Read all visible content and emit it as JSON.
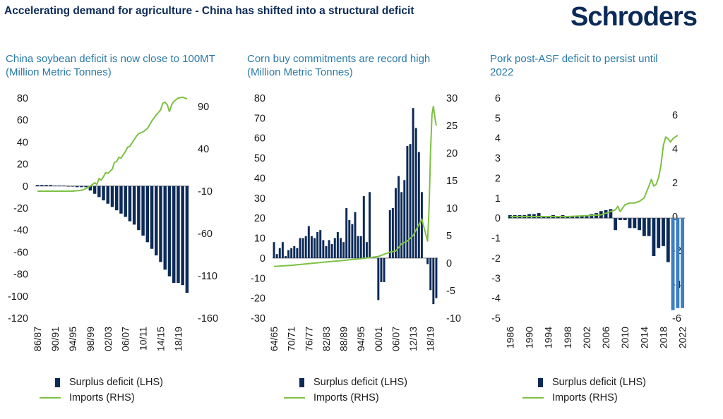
{
  "page": {
    "title": "Accelerating demand for agriculture - China has shifted into a structural deficit",
    "logo": "Schroders"
  },
  "colors": {
    "bar": "#0c2a58",
    "bar_highlight": "#3d7fc1",
    "line": "#7cc142",
    "axis": "#6f6f6f",
    "text": "#1a1a1a"
  },
  "chart_data": [
    {
      "type": "bar+line",
      "title": "China soybean deficit is now close to 100MT (Million Metric Tonnes)",
      "categories": [
        "86/87",
        "87/88",
        "88/89",
        "89/90",
        "90/91",
        "91/92",
        "92/93",
        "93/94",
        "94/95",
        "95/96",
        "96/97",
        "97/98",
        "98/99",
        "99/00",
        "00/01",
        "01/02",
        "02/03",
        "03/04",
        "04/05",
        "05/06",
        "06/07",
        "07/08",
        "08/09",
        "09/10",
        "10/11",
        "11/12",
        "12/13",
        "13/14",
        "14/15",
        "15/16",
        "16/17",
        "17/18",
        "18/19",
        "19/20",
        "20/21"
      ],
      "xticks": [
        "86/87",
        "90/91",
        "94/95",
        "98/99",
        "02/03",
        "06/07",
        "10/11",
        "14/15",
        "18/19"
      ],
      "series": [
        {
          "name": "Surplus deficit (LHS)",
          "type": "bar",
          "axis": "left",
          "values": [
            1,
            1,
            1,
            1,
            0.5,
            0.5,
            0.5,
            -0.5,
            -0.5,
            -1,
            -1,
            -1,
            -4,
            -7,
            -10,
            -13,
            -16,
            -19,
            -22,
            -25,
            -28,
            -32,
            -35,
            -40,
            -45,
            -51,
            -57,
            -63,
            -69,
            -76,
            -82,
            -88,
            -88,
            -90,
            -97
          ]
        },
        {
          "name": "Imports (RHS)",
          "type": "line",
          "axis": "right",
          "x": [
            0,
            4,
            8,
            10,
            11,
            12,
            13,
            13.5,
            14,
            14.5,
            15,
            15.5,
            16,
            17,
            17.5,
            18,
            18.5,
            19,
            20,
            20.5,
            21,
            22,
            22.5,
            23,
            24,
            24.5,
            25,
            26,
            27,
            28,
            28.5,
            29,
            29.5,
            30,
            30.5,
            31,
            32,
            33,
            34
          ],
          "values": [
            -10,
            -10,
            -10,
            -9,
            -7,
            -4,
            0,
            -2,
            5,
            3,
            7,
            12,
            11,
            16,
            24,
            25,
            30,
            29,
            37,
            42,
            43,
            51,
            55,
            58,
            60,
            62,
            64,
            73,
            80,
            86,
            94,
            95,
            92,
            84,
            92,
            96,
            100,
            101,
            99
          ]
        }
      ],
      "ylim_left": [
        -120,
        80
      ],
      "yticks_left": [
        80,
        60,
        40,
        20,
        0,
        -20,
        -40,
        -60,
        -80,
        -100,
        -120
      ],
      "ylim_right": [
        -160,
        100
      ],
      "yticks_right": [
        90,
        40,
        -10,
        -60,
        -110,
        -160
      ]
    },
    {
      "type": "bar+line",
      "title": "Corn buy commitments are record high (Million Metric Tonnes)",
      "categories": [
        "64/65",
        "65/66",
        "66/67",
        "67/68",
        "68/69",
        "69/70",
        "70/71",
        "71/72",
        "72/73",
        "73/74",
        "74/75",
        "75/76",
        "76/77",
        "77/78",
        "78/79",
        "79/80",
        "80/81",
        "81/82",
        "82/83",
        "83/84",
        "84/85",
        "85/86",
        "86/87",
        "87/88",
        "88/89",
        "89/90",
        "90/91",
        "91/92",
        "92/93",
        "93/94",
        "94/95",
        "95/96",
        "96/97",
        "97/98",
        "98/99",
        "99/00",
        "00/01",
        "01/02",
        "02/03",
        "03/04",
        "04/05",
        "05/06",
        "06/07",
        "07/08",
        "08/09",
        "09/10",
        "10/11",
        "11/12",
        "12/13",
        "13/14",
        "14/15",
        "15/16",
        "16/17",
        "17/18",
        "18/19",
        "19/20",
        "20/21"
      ],
      "xticks": [
        "64/65",
        "70/71",
        "76/77",
        "82/83",
        "88/89",
        "94/95",
        "00/01",
        "06/07",
        "12/13",
        "18/19"
      ],
      "series": [
        {
          "name": "Surplus deficit (LHS)",
          "type": "bar",
          "axis": "left",
          "values": [
            8,
            2,
            5,
            8,
            1,
            4,
            5,
            6,
            5,
            10,
            10,
            11,
            16,
            11,
            10,
            13,
            14,
            9,
            6,
            9,
            7,
            10,
            13,
            10,
            8,
            25,
            19,
            17,
            23,
            11,
            11,
            31,
            8,
            33,
            0,
            0,
            -21,
            -12,
            -12,
            0,
            24,
            25,
            35,
            41,
            33,
            39,
            56,
            57,
            75,
            65,
            53,
            33,
            0,
            -3,
            -16,
            -23,
            -20
          ]
        },
        {
          "name": "Imports (RHS)",
          "type": "line",
          "axis": "right",
          "x": [
            0,
            6,
            12,
            18,
            24,
            30,
            36,
            40,
            42,
            44,
            46,
            48,
            50,
            51,
            52,
            53,
            53.5,
            54,
            54.5,
            55,
            55.5,
            56
          ],
          "values": [
            -0.6,
            -0.4,
            -0.1,
            0.2,
            0.5,
            0.8,
            1.2,
            2.0,
            2.2,
            3.5,
            4.0,
            5.0,
            7.0,
            8.0,
            6.0,
            4.0,
            10.0,
            20.0,
            27.0,
            28.5,
            26.5,
            25.0
          ]
        }
      ],
      "ylim_left": [
        -30,
        80
      ],
      "yticks_left": [
        80,
        70,
        60,
        50,
        40,
        30,
        20,
        10,
        0,
        -10,
        -20,
        -30
      ],
      "ylim_right": [
        -10,
        30
      ],
      "yticks_right": [
        30,
        25,
        20,
        15,
        10,
        5,
        0,
        -5,
        -10
      ]
    },
    {
      "type": "bar+line",
      "title": "Pork post-ASF deficit to persist until 2022",
      "categories": [
        "1986",
        "1987",
        "1988",
        "1989",
        "1990",
        "1991",
        "1992",
        "1993",
        "1994",
        "1995",
        "1996",
        "1997",
        "1998",
        "1999",
        "2000",
        "2001",
        "2002",
        "2003",
        "2004",
        "2005",
        "2006",
        "2007",
        "2008",
        "2009",
        "2010",
        "2011",
        "2012",
        "2013",
        "2014",
        "2015",
        "2016",
        "2017",
        "2018",
        "2019",
        "2020",
        "2021",
        "2022"
      ],
      "xticks": [
        "1986",
        "1990",
        "1994",
        "1998",
        "2002",
        "2006",
        "2010",
        "2014",
        "2018",
        "2022"
      ],
      "series": [
        {
          "name": "Surplus deficit (LHS)",
          "type": "bar",
          "axis": "left",
          "values": [
            0.15,
            0.15,
            0.15,
            0.15,
            0.2,
            0.2,
            0.25,
            0.1,
            0.1,
            0.15,
            0.1,
            0.15,
            0.1,
            0.1,
            0.1,
            0.1,
            0.15,
            0.2,
            0.25,
            0.35,
            0.4,
            0.45,
            -0.6,
            -0.1,
            -0.1,
            -0.5,
            -0.5,
            -0.6,
            -0.9,
            -0.9,
            -1.9,
            -1.5,
            -1.4,
            -2.2,
            -4.6,
            -4.5,
            -4.5
          ],
          "highlight_from": 34
        },
        {
          "name": "Imports (RHS)",
          "type": "line",
          "axis": "right",
          "x": [
            0,
            6,
            12,
            16,
            19,
            21,
            22,
            22.5,
            23,
            23.5,
            24,
            25,
            26,
            27,
            28,
            29,
            29.5,
            30,
            30.5,
            31,
            31.5,
            32,
            32.5,
            33,
            33.5,
            34,
            34.5,
            35
          ],
          "values": [
            0,
            0,
            0,
            0.05,
            0.1,
            0.3,
            0.4,
            0.6,
            0.3,
            0.5,
            0.7,
            0.8,
            0.8,
            0.9,
            1.1,
            1.8,
            2.2,
            1.8,
            1.9,
            2.3,
            3.0,
            4.2,
            4.7,
            4.6,
            4.4,
            4.6,
            4.7,
            4.8
          ]
        }
      ],
      "ylim_left": [
        -5,
        6
      ],
      "yticks_left": [
        6,
        5,
        4,
        3,
        2,
        1,
        0,
        -1,
        -2,
        -3,
        -4,
        -5
      ],
      "ylim_right": [
        -6,
        7
      ],
      "yticks_right": [
        6,
        4,
        2,
        0,
        -2,
        -4,
        -6
      ]
    }
  ],
  "legend": {
    "bar_label": "Surplus deficit (LHS)",
    "line_label": "Imports (RHS)"
  }
}
